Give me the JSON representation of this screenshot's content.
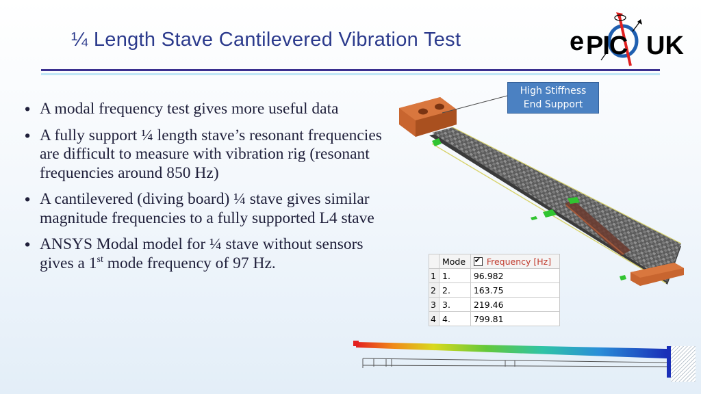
{
  "title": "¼ Length Stave Cantilevered Vibration Test",
  "logo": {
    "prefix": "e",
    "middle": "PIC",
    "suffix": "UK"
  },
  "bullets": [
    {
      "text": "A modal frequency test gives more useful data"
    },
    {
      "text": "A fully support ¼ length stave’s resonant frequencies  are difficult to measure with vibration rig (resonant frequencies around 850 Hz)"
    },
    {
      "text": "A cantilevered (diving board) ¼ stave gives similar magnitude frequencies  to a fully supported L4 stave"
    },
    {
      "before": "ANSYS Modal model for ¼ stave without sensors gives a 1",
      "sup": "st",
      "after": " mode frequency of 97 Hz."
    }
  ],
  "callout": {
    "line1": "High Stiffness",
    "line2": "End Support"
  },
  "mode_table": {
    "headers": {
      "mode": "Mode",
      "frequency": "Frequency [Hz]"
    },
    "rows": [
      {
        "index": "1",
        "mode": "1.",
        "frequency": "96.982"
      },
      {
        "index": "2",
        "mode": "2.",
        "frequency": "163.75"
      },
      {
        "index": "3",
        "mode": "3.",
        "frequency": "219.46"
      },
      {
        "index": "4",
        "mode": "4.",
        "frequency": "799.81"
      }
    ]
  },
  "colors": {
    "title": "#2b3a8c",
    "rule_dark": "#3a2f8f",
    "rule_light": "#bfe6f6",
    "callout": "#4b81c2",
    "support_copper": "#c8652f",
    "logo_ring": "#1f5fb0",
    "logo_arrow": "#e02020"
  }
}
